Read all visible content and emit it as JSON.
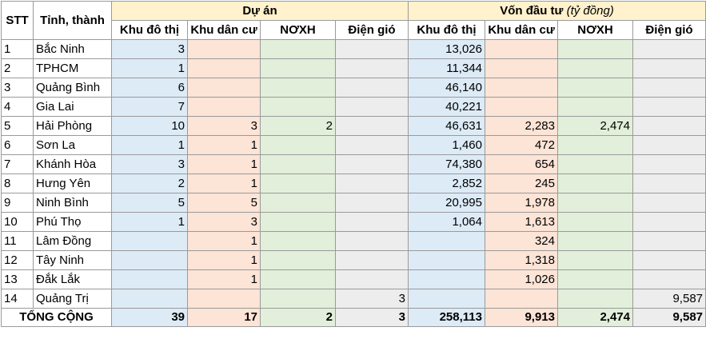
{
  "headers": {
    "stt": "STT",
    "province": "Tỉnh, thành",
    "group_projects": "Dự án",
    "group_capital": "Vốn đầu tư",
    "group_capital_note": "(tỷ đồng)",
    "cols": [
      "Khu đô thị",
      "Khu dân cư",
      "NƠXH",
      "Điện gió"
    ]
  },
  "rows": [
    {
      "stt": "1",
      "name": "Bắc Ninh",
      "p": [
        "3",
        "",
        "",
        ""
      ],
      "v": [
        "13,026",
        "",
        "",
        ""
      ]
    },
    {
      "stt": "2",
      "name": "TPHCM",
      "p": [
        "1",
        "",
        "",
        ""
      ],
      "v": [
        "11,344",
        "",
        "",
        ""
      ]
    },
    {
      "stt": "3",
      "name": "Quảng Bình",
      "p": [
        "6",
        "",
        "",
        ""
      ],
      "v": [
        "46,140",
        "",
        "",
        ""
      ]
    },
    {
      "stt": "4",
      "name": "Gia Lai",
      "p": [
        "7",
        "",
        "",
        ""
      ],
      "v": [
        "40,221",
        "",
        "",
        ""
      ]
    },
    {
      "stt": "5",
      "name": "Hải Phòng",
      "p": [
        "10",
        "3",
        "2",
        ""
      ],
      "v": [
        "46,631",
        "2,283",
        "2,474",
        ""
      ]
    },
    {
      "stt": "6",
      "name": "Sơn La",
      "p": [
        "1",
        "1",
        "",
        ""
      ],
      "v": [
        "1,460",
        "472",
        "",
        ""
      ]
    },
    {
      "stt": "7",
      "name": "Khánh Hòa",
      "p": [
        "3",
        "1",
        "",
        ""
      ],
      "v": [
        "74,380",
        "654",
        "",
        ""
      ]
    },
    {
      "stt": "8",
      "name": "Hưng Yên",
      "p": [
        "2",
        "1",
        "",
        ""
      ],
      "v": [
        "2,852",
        "245",
        "",
        ""
      ]
    },
    {
      "stt": "9",
      "name": "Ninh Bình",
      "p": [
        "5",
        "5",
        "",
        ""
      ],
      "v": [
        "20,995",
        "1,978",
        "",
        ""
      ]
    },
    {
      "stt": "10",
      "name": "Phú Thọ",
      "p": [
        "1",
        "3",
        "",
        ""
      ],
      "v": [
        "1,064",
        "1,613",
        "",
        ""
      ]
    },
    {
      "stt": "11",
      "name": "Lâm Đồng",
      "p": [
        "",
        "1",
        "",
        ""
      ],
      "v": [
        "",
        "324",
        "",
        ""
      ]
    },
    {
      "stt": "12",
      "name": "Tây Ninh",
      "p": [
        "",
        "1",
        "",
        ""
      ],
      "v": [
        "",
        "1,318",
        "",
        ""
      ]
    },
    {
      "stt": "13",
      "name": "Đắk Lắk",
      "p": [
        "",
        "1",
        "",
        ""
      ],
      "v": [
        "",
        "1,026",
        "",
        ""
      ]
    },
    {
      "stt": "14",
      "name": "Quảng Trị",
      "p": [
        "",
        "",
        "",
        "3"
      ],
      "v": [
        "",
        "",
        "",
        "9,587"
      ]
    }
  ],
  "total": {
    "label": "TỔNG CỘNG",
    "p": [
      "39",
      "17",
      "2",
      "3"
    ],
    "v": [
      "258,113",
      "9,913",
      "2,474",
      "9,587"
    ]
  },
  "colors": {
    "header_group": "#fff2cc",
    "urban": "#ddebf7",
    "residential": "#fce4d6",
    "social_housing": "#e2efda",
    "wind_power": "#ededed"
  }
}
